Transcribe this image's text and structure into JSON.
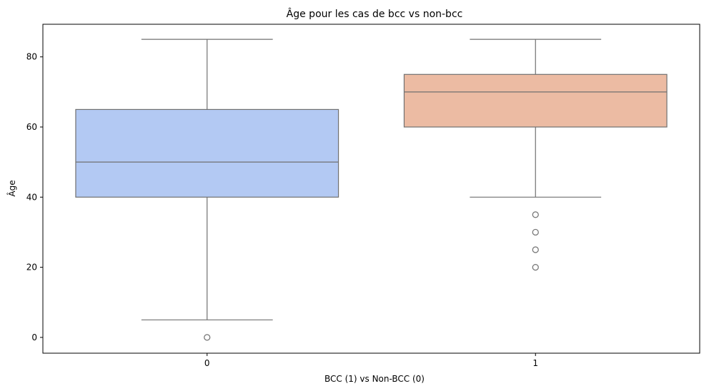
{
  "chart_data": {
    "type": "box",
    "title": "Âge pour les cas de bcc vs non-bcc",
    "xlabel": "BCC (1) vs Non-BCC (0)",
    "ylabel": "Âge",
    "categories": [
      "0",
      "1"
    ],
    "ylim": [
      -4.5,
      89.3
    ],
    "yticks": [
      0,
      20,
      40,
      60,
      80
    ],
    "grid": false,
    "legend": "none",
    "boxes": [
      {
        "category": "0",
        "whisker_low": 5,
        "q1": 40,
        "median": 50,
        "q3": 65,
        "whisker_high": 85,
        "outliers": [
          0
        ],
        "color": "#b3c9f3"
      },
      {
        "category": "1",
        "whisker_low": 40,
        "q1": 60,
        "median": 70,
        "q3": 75,
        "whisker_high": 85,
        "outliers": [
          35,
          30,
          25,
          20
        ],
        "color": "#ecbba3"
      }
    ],
    "line_color": "#707070"
  }
}
